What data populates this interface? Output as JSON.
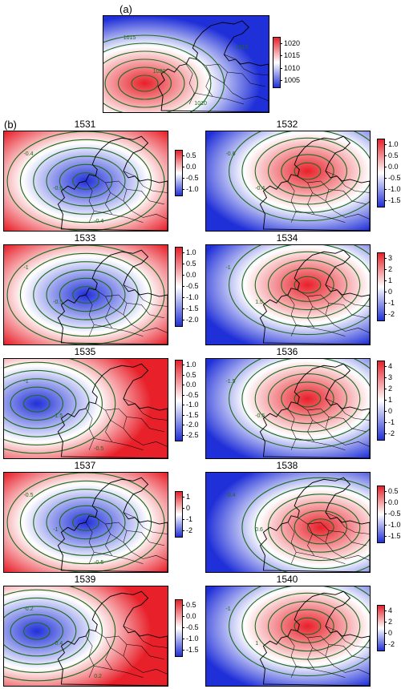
{
  "panel_a": {
    "label": "(a)",
    "kind": "mean",
    "colorbar_ticks": [
      "1020",
      "1015",
      "1010",
      "1005"
    ]
  },
  "panel_b": {
    "label": "(b)"
  },
  "maps": [
    {
      "title": "1531",
      "ticks": [
        "0.5",
        "0.0",
        "-0.5",
        "-1.0"
      ],
      "center": "negative"
    },
    {
      "title": "1532",
      "ticks": [
        "1.0",
        "0.5",
        "0.0",
        "-0.5",
        "-1.0",
        "-1.5"
      ],
      "center": "positive"
    },
    {
      "title": "1533",
      "ticks": [
        "1.0",
        "0.5",
        "0.0",
        "-0.5",
        "-1.0",
        "-1.5",
        "-2.0"
      ],
      "center": "negative"
    },
    {
      "title": "1534",
      "ticks": [
        "3",
        "2",
        "1",
        "0",
        "-1",
        "-2"
      ],
      "center": "positive"
    },
    {
      "title": "1535",
      "ticks": [
        "1.0",
        "0.5",
        "0.0",
        "-0.5",
        "-1.0",
        "-1.5",
        "-2.0",
        "-2.5"
      ],
      "center": "negative-west"
    },
    {
      "title": "1536",
      "ticks": [
        "4",
        "3",
        "2",
        "1",
        "0",
        "-1",
        "-2"
      ],
      "center": "positive"
    },
    {
      "title": "1537",
      "ticks": [
        "1",
        "0",
        "-1",
        "-2"
      ],
      "center": "negative"
    },
    {
      "title": "1538",
      "ticks": [
        "0.5",
        "0.0",
        "-0.5",
        "-1.0",
        "-1.5"
      ],
      "center": "positive-wide"
    },
    {
      "title": "1539",
      "ticks": [
        "0.5",
        "0.0",
        "-0.5",
        "-1.0",
        "-1.5"
      ],
      "center": "negative-west"
    },
    {
      "title": "1540",
      "ticks": [
        "4",
        "2",
        "0",
        "-2"
      ],
      "center": "positive"
    }
  ],
  "contour_labels": {
    "a": [
      "1015",
      "1020",
      "1010",
      "1015"
    ],
    "1531": [
      "-0.4",
      "-0.6",
      "-0.4"
    ],
    "1532": [
      "-0.6",
      "-0.4"
    ],
    "1533": [
      "-1",
      "-0.5"
    ],
    "1534": [
      "-1",
      "1.5"
    ],
    "1535": [
      "-1",
      "-1.5",
      "-0.5"
    ],
    "1536": [
      "-1.5",
      "-0.5"
    ],
    "1537": [
      "-0.5",
      "-1",
      "-0.5"
    ],
    "1538": [
      "-0.4",
      "0.6"
    ],
    "1539": [
      "-0.2",
      "-0.4",
      "0.2"
    ],
    "1540": [
      "-1",
      "1"
    ]
  },
  "colors": {
    "red": "#e8202a",
    "blue": "#2030d8",
    "contour": "#1f6b1f"
  }
}
